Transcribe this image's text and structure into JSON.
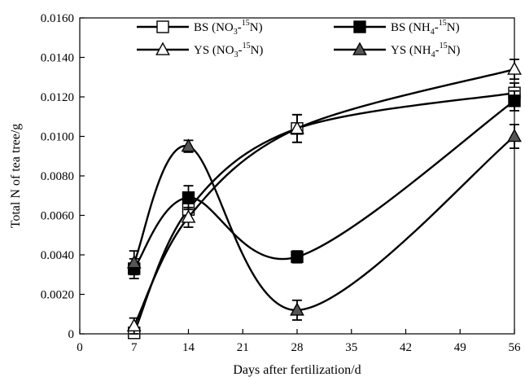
{
  "chart_data": {
    "type": "line",
    "xlabel": "Days after fertilization/d",
    "ylabel": "Total N of tea tree/g",
    "xlim": [
      0,
      56
    ],
    "ylim": [
      0,
      0.016
    ],
    "xticks": [
      "0",
      "7",
      "14",
      "21",
      "28",
      "35",
      "42",
      "49",
      "56"
    ],
    "yticks": [
      "0",
      "0.0020",
      "0.0040",
      "0.0060",
      "0.0080",
      "0.0100",
      "0.0120",
      "0.0140",
      "0.0160"
    ],
    "x": [
      7,
      14,
      28,
      56
    ],
    "legend_position": "top",
    "series": [
      {
        "name": "BS (NO3-15N)",
        "name_parts": {
          "prefix": "BS (NO",
          "sub": "3",
          "mid": "-",
          "sup": "15",
          "suffix": "N)"
        },
        "marker": "square-open",
        "values": [
          5e-05,
          0.0063,
          0.0104,
          0.0122
        ],
        "errors": [
          0.0002,
          0.0006,
          0.0007,
          0.0005
        ]
      },
      {
        "name": "BS (NH4-15N)",
        "name_parts": {
          "prefix": "BS (NH",
          "sub": "4",
          "mid": "-",
          "sup": "15",
          "suffix": "N)"
        },
        "marker": "square-filled",
        "values": [
          0.0033,
          0.0069,
          0.0039,
          0.0118
        ],
        "errors": [
          0.0005,
          0.0006,
          0.0003,
          0.0005
        ]
      },
      {
        "name": "YS (NO3-15N)",
        "name_parts": {
          "prefix": "YS (NO",
          "sub": "3",
          "mid": "-",
          "sup": "15",
          "suffix": "N)"
        },
        "marker": "triangle-open",
        "values": [
          0.0004,
          0.0059,
          0.0104,
          0.0134
        ],
        "errors": [
          0.0004,
          0.0005,
          0.0007,
          0.0005
        ]
      },
      {
        "name": "YS (NH4-15N)",
        "name_parts": {
          "prefix": "YS (NH",
          "sub": "4",
          "mid": "-",
          "sup": "15",
          "suffix": "N)"
        },
        "marker": "triangle-filled",
        "values": [
          0.0036,
          0.0095,
          0.0012,
          0.01
        ],
        "errors": [
          0.0006,
          0.0003,
          0.0005,
          0.0006
        ]
      }
    ]
  }
}
